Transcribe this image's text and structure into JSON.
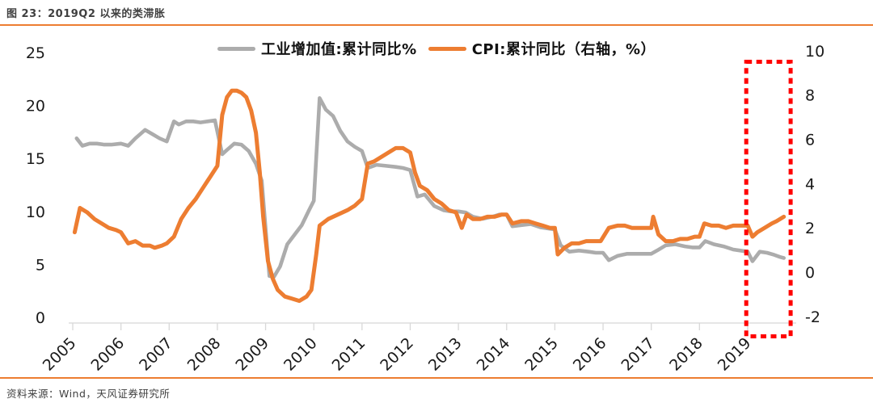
{
  "theme": {
    "accent": "#ED7D31",
    "highlight_red": "#FF0000",
    "gray_line": "#ACACAC",
    "text_dark": "#3f3f3f"
  },
  "header": {
    "title": "图 23：2019Q2 以来的类滞胀"
  },
  "footer": {
    "source": "资料来源：Wind，天风证券研究所"
  },
  "legend": {
    "items": [
      {
        "label": "工业增加值:累计同比%",
        "color": "#ACACAC"
      },
      {
        "label": "CPI:累计同比（右轴，%）",
        "color": "#ED7D31"
      }
    ]
  },
  "chart_data": {
    "type": "line",
    "title": "2019Q2 以来的类滞胀",
    "xlabel": "",
    "ylabel": "",
    "grid": false,
    "legend_position": "top-center",
    "left_axis": {
      "ticks": [
        25,
        20,
        15,
        10,
        5,
        0
      ],
      "range": [
        0,
        25
      ]
    },
    "right_axis": {
      "ticks": [
        10,
        8,
        6,
        4,
        2,
        0,
        -2
      ],
      "range": [
        -2,
        10
      ]
    },
    "x_axis": {
      "ticks": [
        2005,
        2006,
        2007,
        2008,
        2009,
        2010,
        2011,
        2012,
        2013,
        2014,
        2015,
        2016,
        2017,
        2018,
        2019
      ],
      "range": [
        2004.9,
        2020.0
      ],
      "label_rotation": -45
    },
    "series": [
      {
        "name": "工业增加值:累计同比%",
        "axis": "left",
        "color": "#ACACAC",
        "width": 4.6,
        "points": [
          [
            2005.08,
            16.9
          ],
          [
            2005.2,
            16.2
          ],
          [
            2005.35,
            16.4
          ],
          [
            2005.5,
            16.4
          ],
          [
            2005.65,
            16.3
          ],
          [
            2005.8,
            16.3
          ],
          [
            2006.0,
            16.4
          ],
          [
            2006.15,
            16.2
          ],
          [
            2006.3,
            16.9
          ],
          [
            2006.5,
            17.7
          ],
          [
            2006.65,
            17.3
          ],
          [
            2006.8,
            16.9
          ],
          [
            2006.95,
            16.6
          ],
          [
            2007.1,
            18.5
          ],
          [
            2007.2,
            18.2
          ],
          [
            2007.35,
            18.5
          ],
          [
            2007.5,
            18.5
          ],
          [
            2007.65,
            18.4
          ],
          [
            2007.8,
            18.5
          ],
          [
            2007.95,
            18.6
          ],
          [
            2008.1,
            15.4
          ],
          [
            2008.2,
            15.8
          ],
          [
            2008.35,
            16.4
          ],
          [
            2008.5,
            16.3
          ],
          [
            2008.65,
            15.7
          ],
          [
            2008.8,
            14.5
          ],
          [
            2008.92,
            12.9
          ],
          [
            2009.08,
            3.9
          ],
          [
            2009.17,
            3.8
          ],
          [
            2009.3,
            4.8
          ],
          [
            2009.45,
            6.9
          ],
          [
            2009.6,
            7.8
          ],
          [
            2009.75,
            8.7
          ],
          [
            2009.9,
            10.1
          ],
          [
            2010.0,
            11.0
          ],
          [
            2010.12,
            20.7
          ],
          [
            2010.25,
            19.6
          ],
          [
            2010.4,
            19.0
          ],
          [
            2010.55,
            17.6
          ],
          [
            2010.7,
            16.6
          ],
          [
            2010.85,
            16.1
          ],
          [
            2011.0,
            15.7
          ],
          [
            2011.12,
            14.1
          ],
          [
            2011.3,
            14.4
          ],
          [
            2011.5,
            14.3
          ],
          [
            2011.7,
            14.2
          ],
          [
            2011.85,
            14.1
          ],
          [
            2012.0,
            13.9
          ],
          [
            2012.15,
            11.4
          ],
          [
            2012.3,
            11.6
          ],
          [
            2012.5,
            10.5
          ],
          [
            2012.7,
            10.1
          ],
          [
            2012.85,
            10.0
          ],
          [
            2013.0,
            10.0
          ],
          [
            2013.15,
            9.9
          ],
          [
            2013.3,
            9.5
          ],
          [
            2013.5,
            9.3
          ],
          [
            2013.7,
            9.5
          ],
          [
            2013.85,
            9.7
          ],
          [
            2014.0,
            9.7
          ],
          [
            2014.12,
            8.6
          ],
          [
            2014.3,
            8.7
          ],
          [
            2014.5,
            8.8
          ],
          [
            2014.7,
            8.5
          ],
          [
            2014.85,
            8.4
          ],
          [
            2015.0,
            8.3
          ],
          [
            2015.12,
            6.8
          ],
          [
            2015.3,
            6.2
          ],
          [
            2015.5,
            6.3
          ],
          [
            2015.7,
            6.2
          ],
          [
            2015.85,
            6.1
          ],
          [
            2016.0,
            6.1
          ],
          [
            2016.12,
            5.4
          ],
          [
            2016.3,
            5.8
          ],
          [
            2016.5,
            6.0
          ],
          [
            2016.7,
            6.0
          ],
          [
            2016.85,
            6.0
          ],
          [
            2017.0,
            6.0
          ],
          [
            2017.12,
            6.3
          ],
          [
            2017.3,
            6.8
          ],
          [
            2017.5,
            6.9
          ],
          [
            2017.7,
            6.7
          ],
          [
            2017.85,
            6.6
          ],
          [
            2018.0,
            6.6
          ],
          [
            2018.12,
            7.2
          ],
          [
            2018.3,
            6.9
          ],
          [
            2018.5,
            6.7
          ],
          [
            2018.7,
            6.4
          ],
          [
            2018.85,
            6.3
          ],
          [
            2019.0,
            6.2
          ],
          [
            2019.1,
            5.3
          ],
          [
            2019.25,
            6.2
          ],
          [
            2019.4,
            6.1
          ],
          [
            2019.55,
            5.9
          ],
          [
            2019.67,
            5.7
          ],
          [
            2019.75,
            5.6
          ]
        ]
      },
      {
        "name": "CPI:累计同比（右轴，%）",
        "axis": "right",
        "color": "#ED7D31",
        "width": 5,
        "points": [
          [
            2005.04,
            1.8
          ],
          [
            2005.15,
            2.9
          ],
          [
            2005.3,
            2.7
          ],
          [
            2005.45,
            2.4
          ],
          [
            2005.6,
            2.2
          ],
          [
            2005.75,
            2.0
          ],
          [
            2005.9,
            1.9
          ],
          [
            2006.0,
            1.8
          ],
          [
            2006.15,
            1.3
          ],
          [
            2006.3,
            1.4
          ],
          [
            2006.45,
            1.2
          ],
          [
            2006.6,
            1.2
          ],
          [
            2006.7,
            1.1
          ],
          [
            2006.85,
            1.2
          ],
          [
            2006.95,
            1.3
          ],
          [
            2007.1,
            1.6
          ],
          [
            2007.25,
            2.4
          ],
          [
            2007.4,
            2.9
          ],
          [
            2007.55,
            3.3
          ],
          [
            2007.7,
            3.8
          ],
          [
            2007.85,
            4.3
          ],
          [
            2008.0,
            4.8
          ],
          [
            2008.1,
            7.1
          ],
          [
            2008.2,
            7.9
          ],
          [
            2008.3,
            8.2
          ],
          [
            2008.4,
            8.2
          ],
          [
            2008.5,
            8.1
          ],
          [
            2008.6,
            7.9
          ],
          [
            2008.7,
            7.3
          ],
          [
            2008.8,
            6.3
          ],
          [
            2008.88,
            4.5
          ],
          [
            2008.95,
            2.5
          ],
          [
            2009.05,
            0.5
          ],
          [
            2009.15,
            -0.3
          ],
          [
            2009.25,
            -0.8
          ],
          [
            2009.4,
            -1.1
          ],
          [
            2009.55,
            -1.2
          ],
          [
            2009.7,
            -1.3
          ],
          [
            2009.85,
            -1.1
          ],
          [
            2009.95,
            -0.8
          ],
          [
            2010.05,
            0.8
          ],
          [
            2010.12,
            2.1
          ],
          [
            2010.3,
            2.4
          ],
          [
            2010.5,
            2.6
          ],
          [
            2010.7,
            2.8
          ],
          [
            2010.85,
            3.0
          ],
          [
            2011.0,
            3.3
          ],
          [
            2011.12,
            4.9
          ],
          [
            2011.25,
            5.0
          ],
          [
            2011.4,
            5.2
          ],
          [
            2011.55,
            5.4
          ],
          [
            2011.7,
            5.6
          ],
          [
            2011.85,
            5.6
          ],
          [
            2012.0,
            5.4
          ],
          [
            2012.1,
            4.5
          ],
          [
            2012.2,
            3.9
          ],
          [
            2012.35,
            3.7
          ],
          [
            2012.5,
            3.3
          ],
          [
            2012.65,
            3.1
          ],
          [
            2012.8,
            2.8
          ],
          [
            2012.95,
            2.7
          ],
          [
            2013.07,
            2.0
          ],
          [
            2013.17,
            2.6
          ],
          [
            2013.3,
            2.4
          ],
          [
            2013.45,
            2.4
          ],
          [
            2013.6,
            2.5
          ],
          [
            2013.75,
            2.5
          ],
          [
            2013.9,
            2.6
          ],
          [
            2014.0,
            2.6
          ],
          [
            2014.12,
            2.2
          ],
          [
            2014.3,
            2.3
          ],
          [
            2014.45,
            2.3
          ],
          [
            2014.6,
            2.2
          ],
          [
            2014.75,
            2.1
          ],
          [
            2014.9,
            2.0
          ],
          [
            2015.0,
            2.0
          ],
          [
            2015.06,
            0.8
          ],
          [
            2015.2,
            1.1
          ],
          [
            2015.35,
            1.3
          ],
          [
            2015.5,
            1.3
          ],
          [
            2015.65,
            1.4
          ],
          [
            2015.8,
            1.4
          ],
          [
            2015.95,
            1.4
          ],
          [
            2016.12,
            2.0
          ],
          [
            2016.3,
            2.1
          ],
          [
            2016.45,
            2.1
          ],
          [
            2016.6,
            2.0
          ],
          [
            2016.75,
            2.0
          ],
          [
            2016.9,
            2.0
          ],
          [
            2017.0,
            2.0
          ],
          [
            2017.04,
            2.5
          ],
          [
            2017.15,
            1.7
          ],
          [
            2017.3,
            1.4
          ],
          [
            2017.45,
            1.4
          ],
          [
            2017.6,
            1.5
          ],
          [
            2017.75,
            1.5
          ],
          [
            2017.9,
            1.6
          ],
          [
            2018.0,
            1.6
          ],
          [
            2018.1,
            2.2
          ],
          [
            2018.25,
            2.1
          ],
          [
            2018.4,
            2.1
          ],
          [
            2018.55,
            2.0
          ],
          [
            2018.7,
            2.1
          ],
          [
            2018.85,
            2.1
          ],
          [
            2019.0,
            2.1
          ],
          [
            2019.1,
            1.6
          ],
          [
            2019.2,
            1.8
          ],
          [
            2019.35,
            2.0
          ],
          [
            2019.5,
            2.2
          ],
          [
            2019.6,
            2.3
          ],
          [
            2019.75,
            2.5
          ]
        ]
      }
    ],
    "annotation_box": {
      "x_from_year": 2018.97,
      "x_to_year": 2019.89,
      "top_value_right": 9.5,
      "bottom_value_right": -2.9,
      "color": "#FF0000",
      "style": "dashed"
    }
  }
}
